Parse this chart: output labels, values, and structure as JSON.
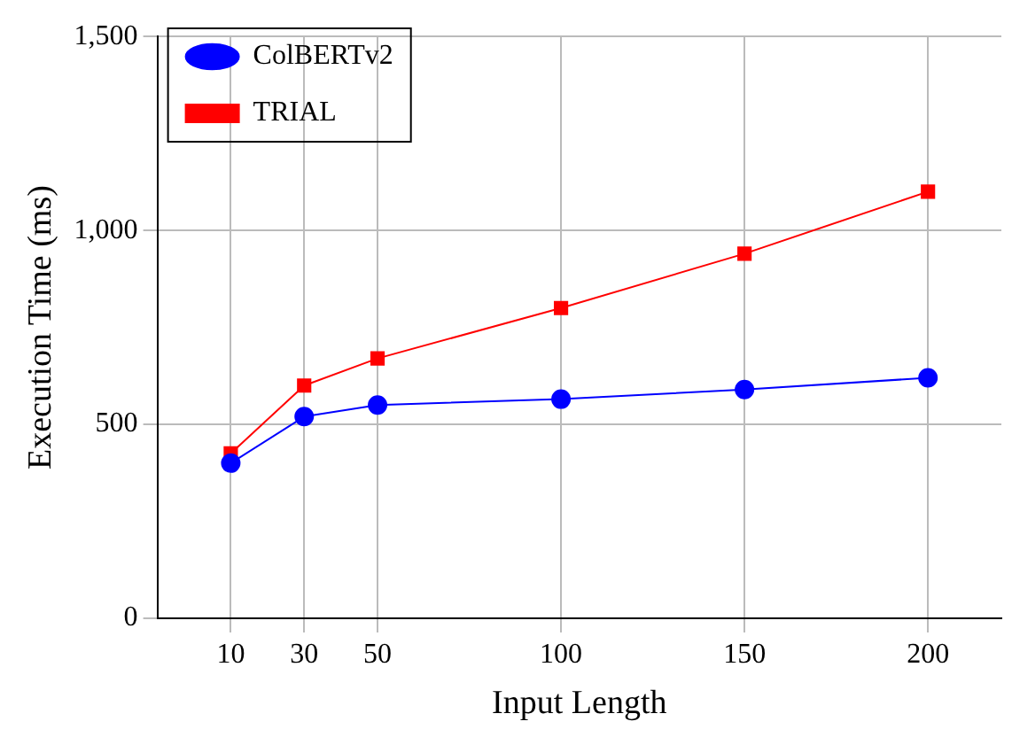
{
  "chart_data": {
    "type": "line",
    "xlabel": "Input Length",
    "ylabel": "Execution Time (ms)",
    "x": [
      10,
      30,
      50,
      100,
      150,
      200
    ],
    "series": [
      {
        "name": "ColBERTv2",
        "color": "#0000ff",
        "marker": "circle",
        "values": [
          400,
          520,
          550,
          565,
          590,
          620
        ]
      },
      {
        "name": "TRIAL",
        "color": "#ff0000",
        "marker": "square",
        "values": [
          425,
          600,
          670,
          800,
          940,
          1100
        ]
      }
    ],
    "xlim": [
      -10,
      220
    ],
    "xticks": [
      10,
      30,
      50,
      100,
      150,
      200
    ],
    "ylim": [
      0,
      1500
    ],
    "yticks": [
      0,
      500,
      {
        "value": 1000,
        "label": "1,000"
      },
      {
        "value": 1500,
        "label": "1,500"
      }
    ],
    "grid": true,
    "legend": "top left"
  }
}
